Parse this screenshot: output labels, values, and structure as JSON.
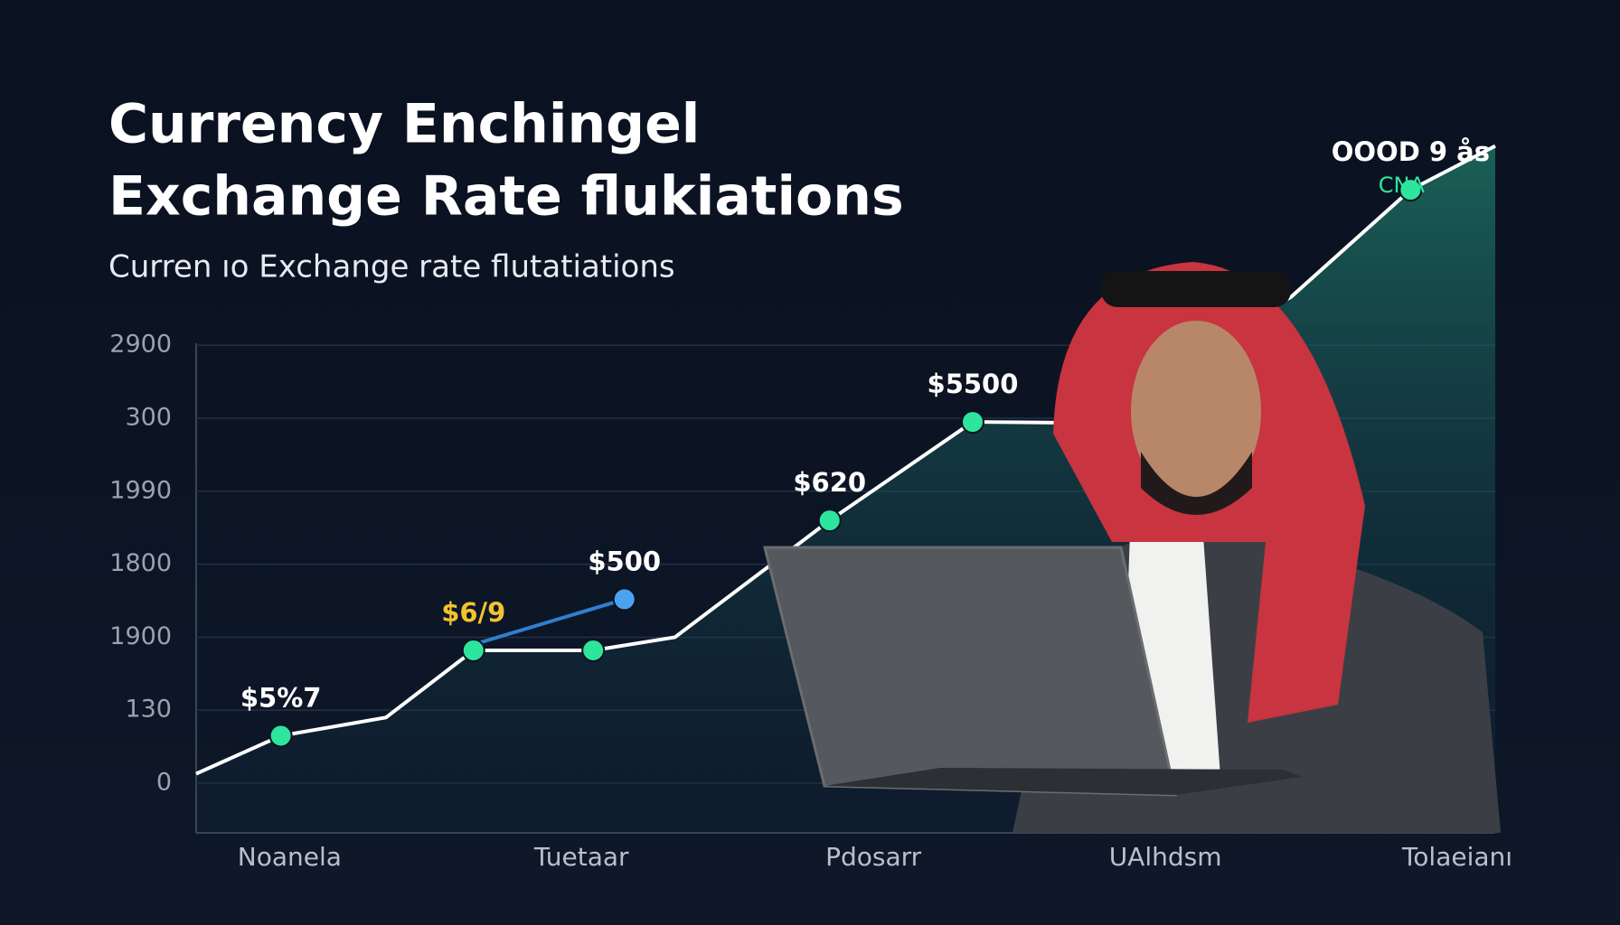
{
  "chart_data": {
    "type": "line",
    "title": [
      "Currency Enchingel",
      "Exchange Rate flukiations"
    ],
    "subtitle": "Curren ıo Exchange rate flutatiations",
    "xlim": [
      -0.32,
      4.13
    ],
    "xticks": [
      {
        "value": 0,
        "label": "Noanela"
      },
      {
        "value": 1,
        "label": "Tuetaar"
      },
      {
        "value": 2,
        "label": "Pdosarr"
      },
      {
        "value": 3,
        "label": "UAlhdsm"
      },
      {
        "value": 4,
        "label": "Tolaeianı"
      }
    ],
    "ylim": [
      -0.68,
      8.75
    ],
    "yticks": [
      {
        "value": 0,
        "label": "0"
      },
      {
        "value": 1,
        "label": "130"
      },
      {
        "value": 2,
        "label": "1900"
      },
      {
        "value": 3,
        "label": "1800"
      },
      {
        "value": 4,
        "label": "1990"
      },
      {
        "value": 5,
        "label": "300"
      },
      {
        "value": 6,
        "label": "2900"
      }
    ],
    "grid": true,
    "area_fill": "#1f7a68",
    "series": [
      {
        "color": "#ffffff",
        "marker_color": "#2ee59d",
        "x": [
          -0.32,
          -0.03,
          0.33,
          0.63,
          1.04,
          1.32,
          1.85,
          2.34,
          2.62,
          3.43,
          3.84,
          4.13
        ],
        "values": [
          0.13,
          0.65,
          0.9,
          1.82,
          1.82,
          2.0,
          3.6,
          4.95,
          4.94,
          6.66,
          8.13,
          8.73
        ],
        "markers": [
          false,
          true,
          false,
          true,
          true,
          false,
          true,
          true,
          false,
          false,
          true,
          false
        ],
        "value_labels": [
          null,
          "$5%7",
          null,
          "$6/9",
          null,
          null,
          "$620",
          "$5500",
          null,
          null,
          "OOOD 9 ås",
          null
        ],
        "label_colors": [
          null,
          "#ffffff",
          null,
          "#f2c230",
          null,
          null,
          "#ffffff",
          "#ffffff",
          null,
          null,
          "#ffffff",
          null
        ]
      },
      {
        "color": "#2f7fd0",
        "marker_color": "#4aa3f0",
        "x": [
          0.63,
          1.147
        ],
        "values": [
          1.9,
          2.52
        ],
        "markers": [
          false,
          true
        ],
        "value_labels": [
          null,
          "$500"
        ],
        "label_colors": [
          null,
          "#ffffff"
        ]
      }
    ],
    "annotations": [
      "CNA"
    ]
  }
}
